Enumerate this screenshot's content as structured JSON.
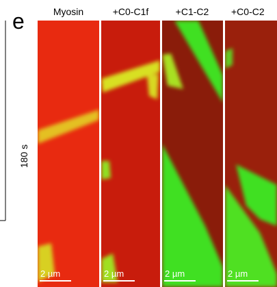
{
  "panel_label": "e",
  "columns": [
    "Myosin",
    "+C0-C1f",
    "+C1-C2",
    "+C0-C2"
  ],
  "time_label": "180 s",
  "scale_bars": [
    "2 µm",
    "2 µm",
    "2 µm",
    "2 µm"
  ]
}
